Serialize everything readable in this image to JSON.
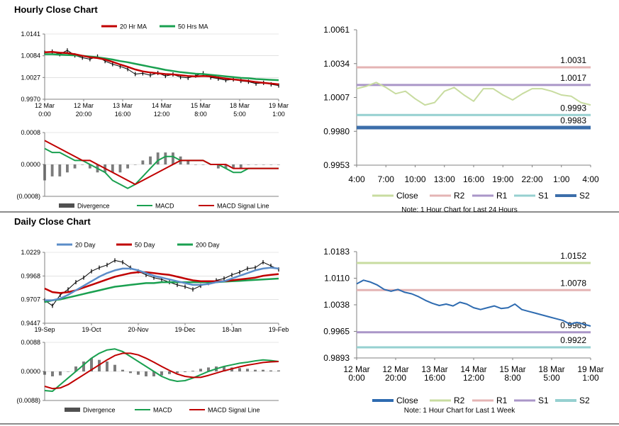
{
  "sections": {
    "hourly_title": "Hourly Close Chart",
    "daily_title": "Daily Close Chart"
  },
  "colors": {
    "close_green": "#c8dca0",
    "r2": "#e4b4b4",
    "r1": "#aa96c8",
    "s1": "#96d0d0",
    "s2": "#3c6eaa",
    "daily_close": "#2e6bb0",
    "ma_red": "#c00000",
    "ma_green": "#1aa050",
    "ma_blue": "#5b8cc8",
    "bars": "#505050",
    "axis": "#808080",
    "grid": "#d0d0d0"
  },
  "chart_data": [
    {
      "id": "hourly_price_ma",
      "type": "line",
      "title": "",
      "legend": [
        "20 Hr MA",
        "50 Hrs MA"
      ],
      "x_tick_labels": [
        [
          "12 Mar",
          "0:00"
        ],
        [
          "12 Mar",
          "20:00"
        ],
        [
          "13 Mar",
          "16:00"
        ],
        [
          "14 Mar",
          "12:00"
        ],
        [
          "15 Mar",
          "8:00"
        ],
        [
          "18 Mar",
          "5:00"
        ],
        [
          "19 Mar",
          "1:00"
        ]
      ],
      "y_tick_labels": [
        "1.0141",
        "1.0084",
        "1.0027",
        "0.9970"
      ],
      "ylim": [
        0.997,
        1.0141
      ],
      "series": [
        {
          "name": "Close",
          "values": [
            1.0092,
            1.0095,
            1.0088,
            1.0098,
            1.0085,
            1.0079,
            1.0075,
            1.0082,
            1.007,
            1.0062,
            1.0056,
            1.0049,
            1.0036,
            1.0038,
            1.0033,
            1.0039,
            1.0031,
            1.0035,
            1.0028,
            1.0026,
            1.0032,
            1.0038,
            1.0027,
            1.0024,
            1.002,
            1.0022,
            1.0018,
            1.0016,
            1.0011,
            1.0013,
            1.0009,
            1.0006
          ]
        },
        {
          "name": "20 Hr MA",
          "values": [
            1.0093,
            1.0094,
            1.0092,
            1.0091,
            1.0088,
            1.0084,
            1.008,
            1.0078,
            1.0074,
            1.0068,
            1.0061,
            1.0055,
            1.0048,
            1.0043,
            1.004,
            1.0038,
            1.0036,
            1.0035,
            1.0033,
            1.0031,
            1.003,
            1.0031,
            1.003,
            1.0027,
            1.0024,
            1.0022,
            1.002,
            1.0018,
            1.0015,
            1.0013,
            1.0011,
            1.0009
          ]
        },
        {
          "name": "50 Hrs MA",
          "values": [
            1.0088,
            1.0088,
            1.0087,
            1.0086,
            1.0085,
            1.0084,
            1.0082,
            1.008,
            1.0077,
            1.0074,
            1.007,
            1.0067,
            1.0063,
            1.0059,
            1.0055,
            1.0051,
            1.0047,
            1.0044,
            1.0041,
            1.0039,
            1.0037,
            1.0036,
            1.0034,
            1.0032,
            1.003,
            1.0028,
            1.0026,
            1.0025,
            1.0023,
            1.0022,
            1.0021,
            1.002
          ]
        }
      ]
    },
    {
      "id": "hourly_macd",
      "type": "line",
      "legend": [
        "Divergence",
        "MACD",
        "MACD Signal Line"
      ],
      "y_tick_labels": [
        "0.0008",
        "0.0000",
        "(0.0008)"
      ],
      "ylim": [
        -0.0008,
        0.0008
      ],
      "series": [
        {
          "name": "Divergence",
          "values": [
            -0.0004,
            -0.0003,
            -0.0003,
            -0.0002,
            -0.0001,
            0.0,
            -0.0001,
            -0.0002,
            -0.0002,
            -0.0002,
            -0.0002,
            -0.0001,
            0.0,
            0.0001,
            0.0002,
            0.0003,
            0.0003,
            0.0003,
            0.0002,
            0.0001,
            0.0,
            0.0,
            0.0,
            -0.0001,
            -0.0001,
            -0.0001,
            -0.0001,
            0.0,
            0.0,
            0.0,
            0.0,
            0.0
          ]
        },
        {
          "name": "MACD",
          "values": [
            0.0004,
            0.0003,
            0.0003,
            0.0002,
            0.0001,
            0.0001,
            0.0,
            -0.0001,
            -0.0002,
            -0.0004,
            -0.0005,
            -0.0006,
            -0.0005,
            -0.0003,
            -0.0001,
            0.0001,
            0.0002,
            0.0002,
            0.0001,
            0.0001,
            0.0001,
            0.0001,
            0.0,
            0.0,
            -0.0001,
            -0.0002,
            -0.0002,
            -0.0001,
            -0.0001,
            -0.0001,
            -0.0001,
            -0.0001
          ]
        },
        {
          "name": "MACD Signal Line",
          "values": [
            0.0006,
            0.0005,
            0.0004,
            0.0003,
            0.0002,
            0.0001,
            0.0001,
            0.0,
            -0.0001,
            -0.0002,
            -0.0003,
            -0.0004,
            -0.0005,
            -0.0004,
            -0.0003,
            -0.0002,
            -0.0001,
            0.0,
            0.0001,
            0.0001,
            0.0001,
            0.0001,
            0.0,
            0.0,
            0.0,
            -0.0001,
            -0.0001,
            -0.0001,
            -0.0001,
            -0.0001,
            -0.0001,
            -0.0001
          ]
        }
      ]
    },
    {
      "id": "hourly_pivots",
      "type": "line",
      "title": "",
      "note": "Note: 1 Hour Chart for Last 24 Hours",
      "legend": [
        "Close",
        "R2",
        "R1",
        "S1",
        "S2"
      ],
      "x_tick_labels": [
        "4:00",
        "7:00",
        "10:00",
        "13:00",
        "16:00",
        "19:00",
        "22:00",
        "1:00",
        "4:00"
      ],
      "y_tick_labels": [
        "1.0061",
        "1.0034",
        "1.0007",
        "0.9980",
        "0.9953"
      ],
      "ylim": [
        0.9953,
        1.0061
      ],
      "levels": [
        {
          "name": "R2",
          "value": 1.0031,
          "label": "1.0031"
        },
        {
          "name": "R1",
          "value": 1.0017,
          "label": "1.0017"
        },
        {
          "name": "S1",
          "value": 0.9993,
          "label": "0.9993"
        },
        {
          "name": "S2",
          "value": 0.9983,
          "label": "0.9983"
        }
      ],
      "series": [
        {
          "name": "Close",
          "values": [
            1.0014,
            1.0016,
            1.0019,
            1.0015,
            1.001,
            1.0012,
            1.0006,
            1.0001,
            1.0003,
            1.0012,
            1.0015,
            1.0009,
            1.0004,
            1.0014,
            1.0014,
            1.0009,
            1.0005,
            1.001,
            1.0014,
            1.0014,
            1.0012,
            1.0009,
            1.0008,
            1.0003,
            1.0001
          ]
        }
      ]
    },
    {
      "id": "daily_price_ma",
      "type": "line",
      "legend": [
        "20 Day",
        "50 Day",
        "200 Day"
      ],
      "x_tick_labels": [
        "19-Sep",
        "19-Oct",
        "20-Nov",
        "19-Dec",
        "18-Jan",
        "19-Feb"
      ],
      "y_tick_labels": [
        "1.0229",
        "0.9968",
        "0.9707",
        "0.9447"
      ],
      "ylim": [
        0.9447,
        1.0229
      ],
      "series": [
        {
          "name": "Close",
          "values": [
            0.97,
            0.964,
            0.976,
            0.982,
            0.99,
            0.995,
            1.002,
            1.006,
            1.009,
            1.014,
            1.012,
            1.006,
            1.002,
            0.998,
            0.995,
            0.993,
            0.99,
            0.987,
            0.985,
            0.982,
            0.986,
            0.989,
            0.992,
            0.994,
            0.998,
            1.001,
            1.005,
            1.006,
            1.012,
            1.008,
            1.004
          ]
        },
        {
          "name": "20 Day",
          "values": [
            0.97,
            0.97,
            0.972,
            0.976,
            0.981,
            0.986,
            0.991,
            0.996,
            1.0,
            1.003,
            1.005,
            1.005,
            1.003,
            1.0,
            0.997,
            0.995,
            0.993,
            0.991,
            0.989,
            0.987,
            0.987,
            0.988,
            0.99,
            0.991,
            0.994,
            0.997,
            1.0,
            1.003,
            1.005,
            1.006,
            1.005
          ]
        },
        {
          "name": "50 Day",
          "values": [
            0.983,
            0.979,
            0.978,
            0.979,
            0.981,
            0.984,
            0.987,
            0.99,
            0.993,
            0.996,
            0.998,
            1.0,
            1.001,
            1.001,
            1.0,
            0.999,
            0.998,
            0.996,
            0.994,
            0.992,
            0.991,
            0.991,
            0.991,
            0.991,
            0.992,
            0.993,
            0.994,
            0.995,
            0.997,
            0.998,
            0.999
          ]
        },
        {
          "name": "200 Day",
          "values": [
            0.968,
            0.97,
            0.971,
            0.973,
            0.975,
            0.977,
            0.979,
            0.981,
            0.983,
            0.985,
            0.986,
            0.987,
            0.988,
            0.989,
            0.989,
            0.99,
            0.99,
            0.99,
            0.99,
            0.99,
            0.99,
            0.99,
            0.99,
            0.9905,
            0.991,
            0.9915,
            0.992,
            0.9925,
            0.993,
            0.9935,
            0.994
          ]
        }
      ]
    },
    {
      "id": "daily_macd",
      "type": "line",
      "legend": [
        "Divergence",
        "MACD",
        "MACD Signal Line"
      ],
      "y_tick_labels": [
        "0.0088",
        "0.0000",
        "(0.0088)"
      ],
      "ylim": [
        -0.0088,
        0.0088
      ],
      "series": [
        {
          "name": "Divergence",
          "values": [
            -0.001,
            -0.0015,
            -0.0012,
            0.0,
            0.0015,
            0.003,
            0.004,
            0.0035,
            0.003,
            0.002,
            0.0005,
            -0.0005,
            -0.001,
            -0.0015,
            -0.0015,
            -0.0012,
            -0.0008,
            -0.0005,
            -0.0002,
            0.0002,
            0.0008,
            0.0012,
            0.0015,
            0.0015,
            0.0012,
            0.001,
            0.0008,
            0.0005,
            0.0005,
            0.0003,
            0.0003
          ]
        },
        {
          "name": "MACD",
          "values": [
            -0.0058,
            -0.006,
            -0.004,
            -0.002,
            0.0,
            0.002,
            0.004,
            0.0055,
            0.0065,
            0.0068,
            0.006,
            0.0045,
            0.003,
            0.0015,
            0.0,
            -0.0015,
            -0.0025,
            -0.003,
            -0.0028,
            -0.002,
            -0.001,
            0.0,
            0.0008,
            0.0015,
            0.002,
            0.0025,
            0.0028,
            0.0032,
            0.0035,
            0.0033,
            0.003
          ]
        },
        {
          "name": "MACD Signal Line",
          "values": [
            -0.0045,
            -0.0052,
            -0.005,
            -0.004,
            -0.0025,
            -0.001,
            0.0005,
            0.002,
            0.0035,
            0.0048,
            0.0055,
            0.0055,
            0.005,
            0.004,
            0.0028,
            0.0015,
            0.0003,
            -0.0008,
            -0.0015,
            -0.0018,
            -0.0018,
            -0.0012,
            -0.0005,
            0.0002,
            0.0008,
            0.0014,
            0.0019,
            0.0023,
            0.0027,
            0.0029,
            0.003
          ]
        }
      ]
    },
    {
      "id": "daily_pivots",
      "type": "line",
      "note": "Note: 1 Hour Chart for Last 1 Week",
      "legend": [
        "Close",
        "R2",
        "R1",
        "S1",
        "S2"
      ],
      "x_tick_labels": [
        [
          "12 Mar",
          "0:00"
        ],
        [
          "12 Mar",
          "20:00"
        ],
        [
          "13 Mar",
          "16:00"
        ],
        [
          "14 Mar",
          "12:00"
        ],
        [
          "15 Mar",
          "8:00"
        ],
        [
          "18 Mar",
          "5:00"
        ],
        [
          "19 Mar",
          "1:00"
        ]
      ],
      "y_tick_labels": [
        "1.0183",
        "1.0110",
        "1.0038",
        "0.9965",
        "0.9893"
      ],
      "ylim": [
        0.9893,
        1.0183
      ],
      "levels": [
        {
          "name": "R2",
          "value": 1.0152,
          "label": "1.0152"
        },
        {
          "name": "R1",
          "value": 1.0078,
          "label": "1.0078"
        },
        {
          "name": "S1",
          "value": 0.9963,
          "label": "0.9963"
        },
        {
          "name": "S2",
          "value": 0.9922,
          "label": "0.9922"
        }
      ],
      "series": [
        {
          "name": "Close",
          "values": [
            1.0095,
            1.0105,
            1.01,
            1.0092,
            1.008,
            1.0075,
            1.008,
            1.0072,
            1.0068,
            1.006,
            1.005,
            1.0042,
            1.0036,
            1.004,
            1.0035,
            1.0045,
            1.004,
            1.003,
            1.0025,
            1.003,
            1.0035,
            1.0028,
            1.003,
            1.004,
            1.0025,
            1.002,
            1.0015,
            1.001,
            1.0005,
            1.0,
            0.9995,
            0.9985,
            0.999,
            0.9985,
            0.998
          ]
        }
      ]
    }
  ]
}
